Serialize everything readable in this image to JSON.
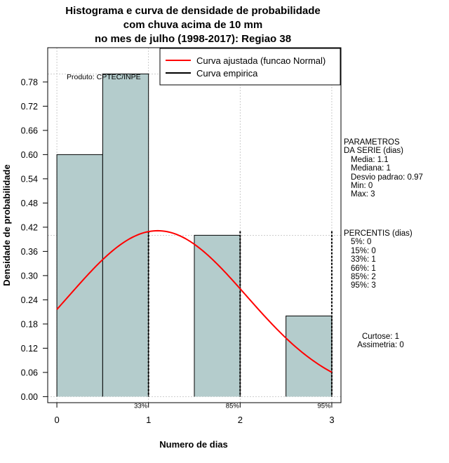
{
  "title_lines": [
    "Histograma e curva de densidade de probabilidade",
    "com chuva acima de 10 mm",
    "no mes de julho (1998-2017): Regiao 38"
  ],
  "credit": "Produto: CPTEC/INPE",
  "params": {
    "heading": [
      "PARAMETROS",
      "DA SERIE (dias)"
    ],
    "items": [
      "Media: 1.1",
      "Mediana: 1",
      "Desvio padrao: 0.97",
      "Min: 0",
      "Max: 3"
    ]
  },
  "percentis": {
    "heading": "PERCENTIS (dias)",
    "items": [
      "5%: 0",
      "15%: 0",
      "33%: 1",
      "66%: 1",
      "85%: 2",
      "95%: 3"
    ]
  },
  "stats": [
    "Curtose: 1",
    "Assimetria: 0"
  ],
  "colors": {
    "bar_fill": "#b4cccc",
    "normal_curve": "#ff0000",
    "empirical": "#000000",
    "grid": "#bebebe"
  },
  "chart_data": {
    "type": "bar",
    "xlabel": "Numero de dias",
    "ylabel": "Densidade de probabilidade",
    "xlim": [
      -0.1,
      3.1
    ],
    "ylim": [
      -0.015,
      0.865
    ],
    "x_ticks": [
      0,
      1,
      2,
      3
    ],
    "y_ticks": [
      "0.00",
      "0.06",
      "0.12",
      "0.18",
      "0.24",
      "0.30",
      "0.36",
      "0.42",
      "0.48",
      "0.54",
      "0.60",
      "0.66",
      "0.72",
      "0.78"
    ],
    "bars": [
      {
        "x0": 0.0,
        "x1": 0.5,
        "value": 0.6
      },
      {
        "x0": 0.5,
        "x1": 1.0,
        "value": 0.8
      },
      {
        "x0": 1.5,
        "x1": 2.0,
        "value": 0.4
      },
      {
        "x0": 2.5,
        "x1": 3.0,
        "value": 0.2
      }
    ],
    "normal_curve": {
      "mean": 1.1,
      "sd": 0.97,
      "x_range": [
        0,
        3
      ]
    },
    "percentile_markers": [
      {
        "x": 1,
        "label": "33%"
      },
      {
        "x": 2,
        "label": "85%"
      },
      {
        "x": 3,
        "label": "95%"
      }
    ],
    "ref_lines_y": [
      0.4,
      0.8
    ],
    "legend": {
      "position": "top-right",
      "entries": [
        {
          "label": "Curva ajustada (funcao Normal)",
          "color": "#ff0000"
        },
        {
          "label": "Curva empirica",
          "color": "#000000"
        }
      ]
    }
  }
}
